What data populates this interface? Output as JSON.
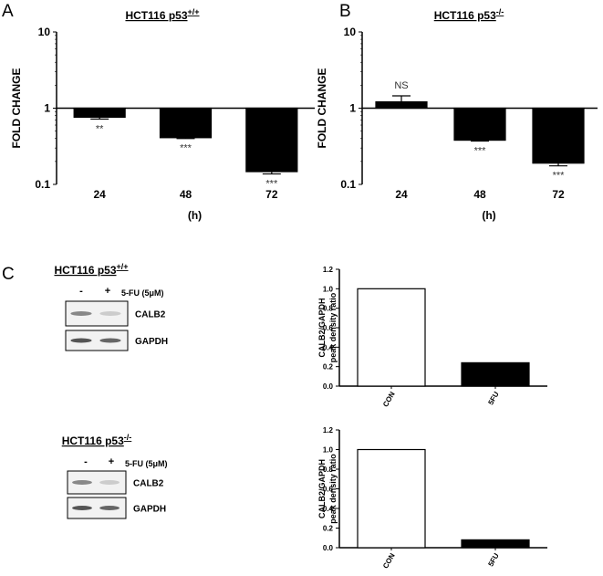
{
  "panel_labels": [
    "A",
    "B",
    "C"
  ],
  "chart_data": [
    {
      "type": "bar",
      "title": "HCT116  p53",
      "title_superscript": "+/+",
      "log_scale": true,
      "x_axis_at": 1,
      "categories": [
        "24",
        "48",
        "72"
      ],
      "values": [
        0.76,
        0.41,
        0.147
      ],
      "errors": [
        0.04,
        0.01,
        0.01
      ],
      "annotations": [
        "**",
        "***",
        "***"
      ],
      "color": "#000000",
      "ylim": [
        0.1,
        10
      ],
      "yticks": [
        0.1,
        1,
        10
      ],
      "ylabel": [
        "FOLD CHANGE"
      ],
      "xlabel": "(h)"
    },
    {
      "type": "bar",
      "title": "HCT116  p53",
      "title_superscript": "-/-",
      "log_scale": true,
      "x_axis_at": 1,
      "categories": [
        "24",
        "48",
        "72"
      ],
      "values": [
        1.21,
        0.38,
        0.19
      ],
      "errors": [
        0.24,
        0.01,
        0.015
      ],
      "annotations": [
        "NS",
        "***",
        "***"
      ],
      "color": "#000000",
      "ylim": [
        0.1,
        10
      ],
      "yticks": [
        0.1,
        1,
        10
      ],
      "ylabel": [
        "FOLD CHANGE"
      ],
      "xlabel": "(h)"
    },
    {
      "type": "bar",
      "log_scale": false,
      "categories": [
        "CON",
        "5FU"
      ],
      "values": [
        1.0,
        0.24
      ],
      "colors": [
        "#ffffff",
        "#000000"
      ],
      "ylim": [
        0,
        1.2
      ],
      "yticks": [
        {
          "value": 0,
          "label": "0.0"
        },
        0.2,
        0.4,
        0.6,
        0.8,
        {
          "value": 1,
          "label": "1.0"
        },
        1.2
      ],
      "ylabel": [
        "CALB2/GAPDH",
        "peak density ratio"
      ]
    },
    {
      "type": "bar",
      "log_scale": false,
      "categories": [
        "CON",
        "5FU"
      ],
      "values": [
        1.0,
        0.08
      ],
      "colors": [
        "#ffffff",
        "#000000"
      ],
      "ylim": [
        0,
        1.2
      ],
      "yticks": [
        {
          "value": 0,
          "label": "0.0"
        },
        0.2,
        0.4,
        0.6,
        0.8,
        {
          "value": 1,
          "label": "1.0"
        },
        1.2
      ],
      "ylabel": [
        "CALB2/GAPDH",
        "peak density ratio"
      ]
    }
  ],
  "blots": [
    {
      "title": "HCT116  p53",
      "title_superscript": "+/+",
      "lanes": [
        "-",
        "+"
      ],
      "treatment": "5-FU (5μM)",
      "bands": [
        "CALB2",
        "GAPDH"
      ]
    },
    {
      "title": "HCT116  p53",
      "title_superscript": "-/-",
      "lanes": [
        "-",
        "+"
      ],
      "treatment": "5-FU (5μM)",
      "bands": [
        "CALB2",
        "GAPDH"
      ]
    }
  ]
}
